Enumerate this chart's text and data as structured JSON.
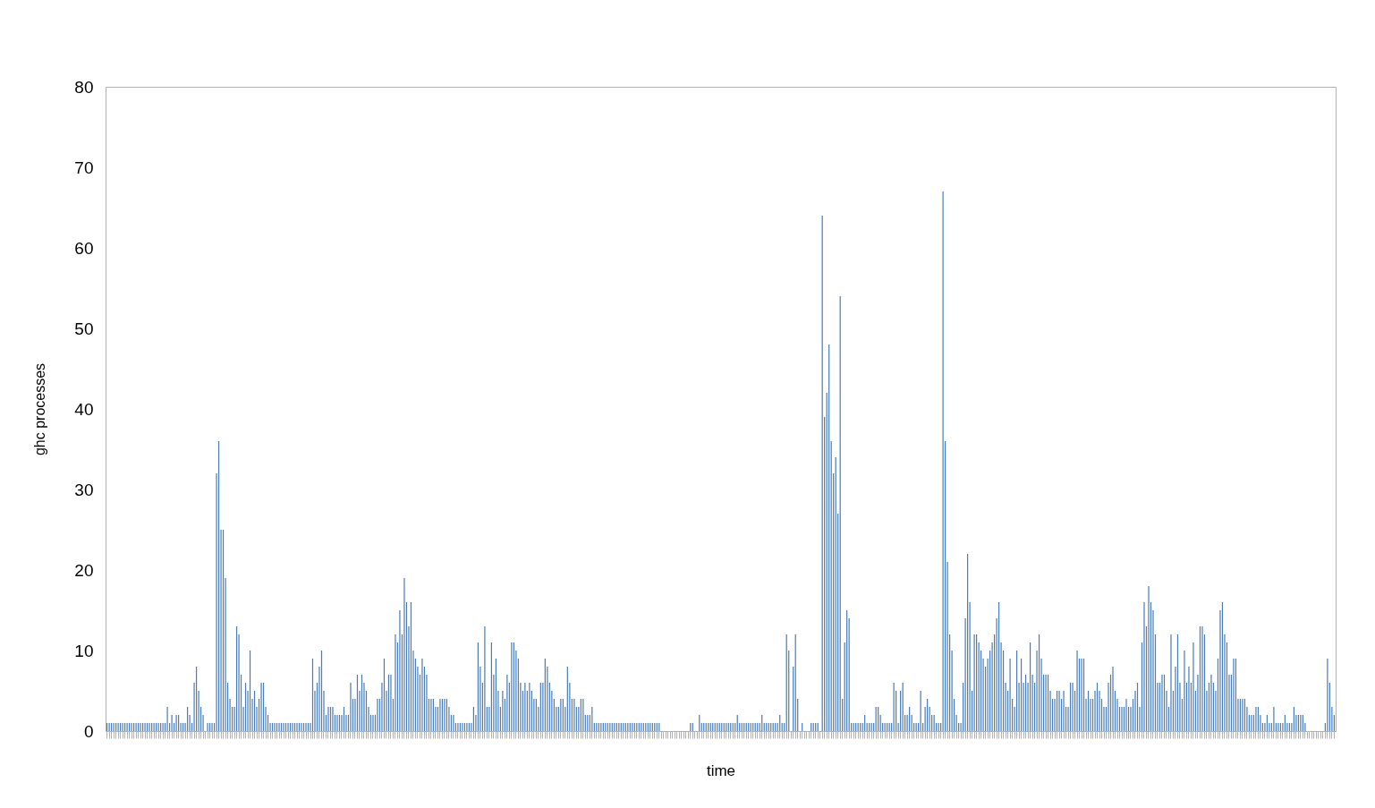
{
  "chart_data": {
    "type": "bar",
    "xlabel": "time",
    "ylabel": "ghc processes",
    "color": "#4a7ebb",
    "ylim": [
      0,
      80
    ],
    "yticks": [
      0,
      10,
      20,
      30,
      40,
      50,
      60,
      70,
      80
    ],
    "grid": false,
    "tick_labels": "y",
    "values": [
      1,
      1,
      1,
      1,
      1,
      1,
      1,
      1,
      1,
      1,
      1,
      1,
      1,
      1,
      1,
      1,
      1,
      1,
      1,
      1,
      1,
      1,
      1,
      1,
      1,
      1,
      1,
      3,
      1,
      2,
      1,
      2,
      2,
      1,
      1,
      1,
      3,
      2,
      1,
      6,
      8,
      5,
      3,
      2,
      0,
      1,
      1,
      1,
      1,
      32,
      36,
      25,
      25,
      19,
      6,
      4,
      3,
      3,
      13,
      12,
      7,
      3,
      6,
      5,
      10,
      4,
      5,
      3,
      4,
      6,
      6,
      3,
      2,
      1,
      1,
      1,
      1,
      1,
      1,
      1,
      1,
      1,
      1,
      1,
      1,
      1,
      1,
      1,
      1,
      1,
      1,
      1,
      9,
      5,
      6,
      8,
      10,
      5,
      2,
      3,
      3,
      3,
      2,
      2,
      2,
      2,
      3,
      2,
      2,
      6,
      4,
      4,
      7,
      5,
      7,
      6,
      5,
      3,
      2,
      2,
      2,
      4,
      4,
      6,
      9,
      5,
      7,
      7,
      4,
      12,
      11,
      15,
      12,
      19,
      16,
      13,
      16,
      10,
      9,
      8,
      7,
      9,
      8,
      7,
      4,
      4,
      4,
      3,
      3,
      4,
      4,
      4,
      4,
      3,
      2,
      2,
      1,
      1,
      1,
      1,
      1,
      1,
      1,
      1,
      3,
      2,
      11,
      8,
      6,
      13,
      3,
      3,
      11,
      7,
      9,
      5,
      3,
      5,
      4,
      7,
      6,
      11,
      11,
      10,
      9,
      6,
      5,
      6,
      5,
      6,
      5,
      4,
      4,
      3,
      6,
      6,
      9,
      8,
      6,
      5,
      4,
      3,
      3,
      4,
      4,
      3,
      8,
      6,
      4,
      4,
      3,
      3,
      4,
      4,
      2,
      2,
      2,
      3,
      1,
      1,
      1,
      1,
      1,
      1,
      1,
      1,
      1,
      1,
      1,
      1,
      1,
      1,
      1,
      1,
      1,
      1,
      1,
      1,
      1,
      1,
      1,
      1,
      1,
      1,
      1,
      1,
      1,
      1,
      0,
      0,
      0,
      0,
      0,
      0,
      0,
      0,
      0,
      0,
      0,
      0,
      0,
      1,
      1,
      0,
      0,
      2,
      1,
      1,
      1,
      1,
      1,
      1,
      1,
      1,
      1,
      1,
      1,
      1,
      1,
      1,
      1,
      1,
      2,
      1,
      1,
      1,
      1,
      1,
      1,
      1,
      1,
      1,
      1,
      2,
      1,
      1,
      1,
      1,
      1,
      1,
      1,
      2,
      1,
      1,
      12,
      10,
      0,
      8,
      12,
      4,
      0,
      1,
      0,
      0,
      0,
      1,
      1,
      1,
      1,
      0,
      64,
      39,
      42,
      48,
      36,
      32,
      34,
      27,
      54,
      4,
      11,
      15,
      14,
      1,
      1,
      1,
      1,
      1,
      1,
      2,
      1,
      1,
      1,
      1,
      3,
      3,
      2,
      1,
      1,
      1,
      1,
      1,
      6,
      5,
      1,
      5,
      6,
      2,
      2,
      3,
      2,
      1,
      1,
      1,
      5,
      1,
      3,
      4,
      3,
      2,
      2,
      1,
      1,
      1,
      67,
      36,
      21,
      12,
      10,
      4,
      2,
      1,
      1,
      6,
      14,
      22,
      16,
      5,
      12,
      12,
      11,
      10,
      9,
      8,
      9,
      10,
      11,
      12,
      14,
      16,
      11,
      10,
      6,
      5,
      9,
      4,
      3,
      10,
      6,
      9,
      6,
      7,
      6,
      11,
      7,
      6,
      10,
      12,
      9,
      7,
      7,
      7,
      5,
      4,
      4,
      5,
      5,
      4,
      5,
      3,
      3,
      6,
      6,
      5,
      10,
      9,
      9,
      9,
      4,
      5,
      4,
      4,
      5,
      6,
      5,
      4,
      3,
      3,
      6,
      7,
      8,
      5,
      4,
      3,
      3,
      3,
      4,
      3,
      3,
      4,
      5,
      6,
      3,
      11,
      16,
      13,
      18,
      16,
      15,
      12,
      6,
      6,
      7,
      7,
      5,
      3,
      12,
      5,
      8,
      12,
      6,
      4,
      10,
      6,
      8,
      6,
      11,
      5,
      7,
      13,
      13,
      12,
      5,
      6,
      7,
      6,
      5,
      9,
      15,
      16,
      12,
      11,
      7,
      7,
      9,
      9,
      4,
      4,
      4,
      4,
      3,
      2,
      2,
      2,
      3,
      3,
      2,
      1,
      1,
      2,
      1,
      1,
      3,
      1,
      1,
      1,
      1,
      2,
      1,
      1,
      1,
      3,
      2,
      2,
      2,
      2,
      1,
      0,
      0,
      0,
      0,
      0,
      0,
      0,
      0,
      1,
      9,
      6,
      3,
      2
    ]
  }
}
